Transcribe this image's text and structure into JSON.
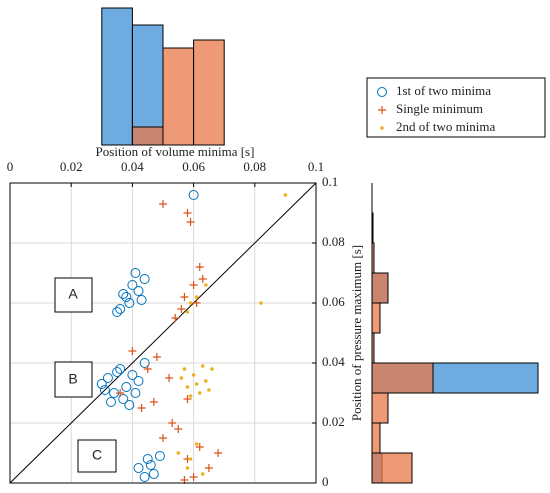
{
  "chart_data": [
    {
      "type": "scatter",
      "xlim": [
        0,
        0.1
      ],
      "ylim": [
        0,
        0.1
      ],
      "xticks": [
        0,
        0.02,
        0.04,
        0.06,
        0.08,
        0.1
      ],
      "yticks": [
        0,
        0.02,
        0.04,
        0.06,
        0.08,
        0.1
      ],
      "grid": true,
      "xlabel": "Position of volume minima [s]",
      "ylabel": "Position of pressure maximum [s]",
      "annotations": [
        "A",
        "B",
        "C"
      ],
      "series": [
        {
          "name": "1st of two minima",
          "color": "#0072bd",
          "marker": "circle",
          "x": [
            0.036,
            0.038,
            0.04,
            0.042,
            0.044,
            0.039,
            0.041,
            0.037,
            0.043,
            0.035,
            0.03,
            0.032,
            0.034,
            0.036,
            0.038,
            0.04,
            0.042,
            0.044,
            0.033,
            0.037,
            0.041,
            0.035,
            0.039,
            0.031,
            0.042,
            0.045,
            0.047,
            0.049,
            0.044,
            0.046,
            0.06
          ],
          "values": [
            0.058,
            0.062,
            0.066,
            0.064,
            0.068,
            0.06,
            0.07,
            0.063,
            0.061,
            0.057,
            0.033,
            0.035,
            0.03,
            0.038,
            0.032,
            0.036,
            0.034,
            0.04,
            0.027,
            0.028,
            0.03,
            0.037,
            0.026,
            0.031,
            0.005,
            0.008,
            0.003,
            0.009,
            0.002,
            0.006,
            0.096
          ]
        },
        {
          "name": "Single minimum",
          "color": "#d95319",
          "marker": "plus",
          "x": [
            0.05,
            0.058,
            0.059,
            0.062,
            0.057,
            0.06,
            0.063,
            0.056,
            0.061,
            0.054,
            0.036,
            0.04,
            0.045,
            0.048,
            0.052,
            0.058,
            0.047,
            0.043,
            0.05,
            0.055,
            0.058,
            0.062,
            0.065,
            0.06,
            0.068,
            0.053,
            0.057
          ],
          "values": [
            0.093,
            0.09,
            0.087,
            0.072,
            0.062,
            0.066,
            0.068,
            0.058,
            0.06,
            0.055,
            0.03,
            0.044,
            0.038,
            0.042,
            0.035,
            0.028,
            0.027,
            0.025,
            0.015,
            0.018,
            0.008,
            0.012,
            0.005,
            0.002,
            0.01,
            0.02,
            0.001
          ]
        },
        {
          "name": "2nd of two minima",
          "color": "#edb120",
          "marker": "dot",
          "x": [
            0.09,
            0.082,
            0.058,
            0.061,
            0.064,
            0.059,
            0.056,
            0.058,
            0.06,
            0.062,
            0.064,
            0.066,
            0.059,
            0.063,
            0.061,
            0.065,
            0.057,
            0.055,
            0.058,
            0.061,
            0.063,
            0.059
          ],
          "values": [
            0.096,
            0.06,
            0.057,
            0.062,
            0.066,
            0.06,
            0.035,
            0.032,
            0.036,
            0.03,
            0.034,
            0.038,
            0.029,
            0.039,
            0.033,
            0.031,
            0.038,
            0.01,
            0.005,
            0.013,
            0.003,
            0.008
          ]
        }
      ]
    },
    {
      "type": "histogram",
      "orientation": "vertical",
      "bins": [
        0.03,
        0.04,
        0.05,
        0.06,
        0.07
      ],
      "series": [
        {
          "color": "#3d8fd6",
          "values": [
            137,
            120,
            0,
            0
          ]
        },
        {
          "color": "#e8784a",
          "values": [
            0,
            18,
            97,
            105
          ]
        }
      ]
    },
    {
      "type": "histogram",
      "orientation": "horizontal",
      "bins": [
        0,
        0.01,
        0.02,
        0.03,
        0.04,
        0.05,
        0.06,
        0.07,
        0.08,
        0.09,
        0.1
      ],
      "series": [
        {
          "color": "#3d8fd6",
          "values": [
            10,
            0,
            0,
            166,
            0,
            0,
            16,
            0,
            0,
            0
          ]
        },
        {
          "color": "#e8784a",
          "values": [
            40,
            8,
            16,
            61,
            2,
            8,
            16,
            2,
            1,
            0
          ]
        }
      ]
    }
  ]
}
